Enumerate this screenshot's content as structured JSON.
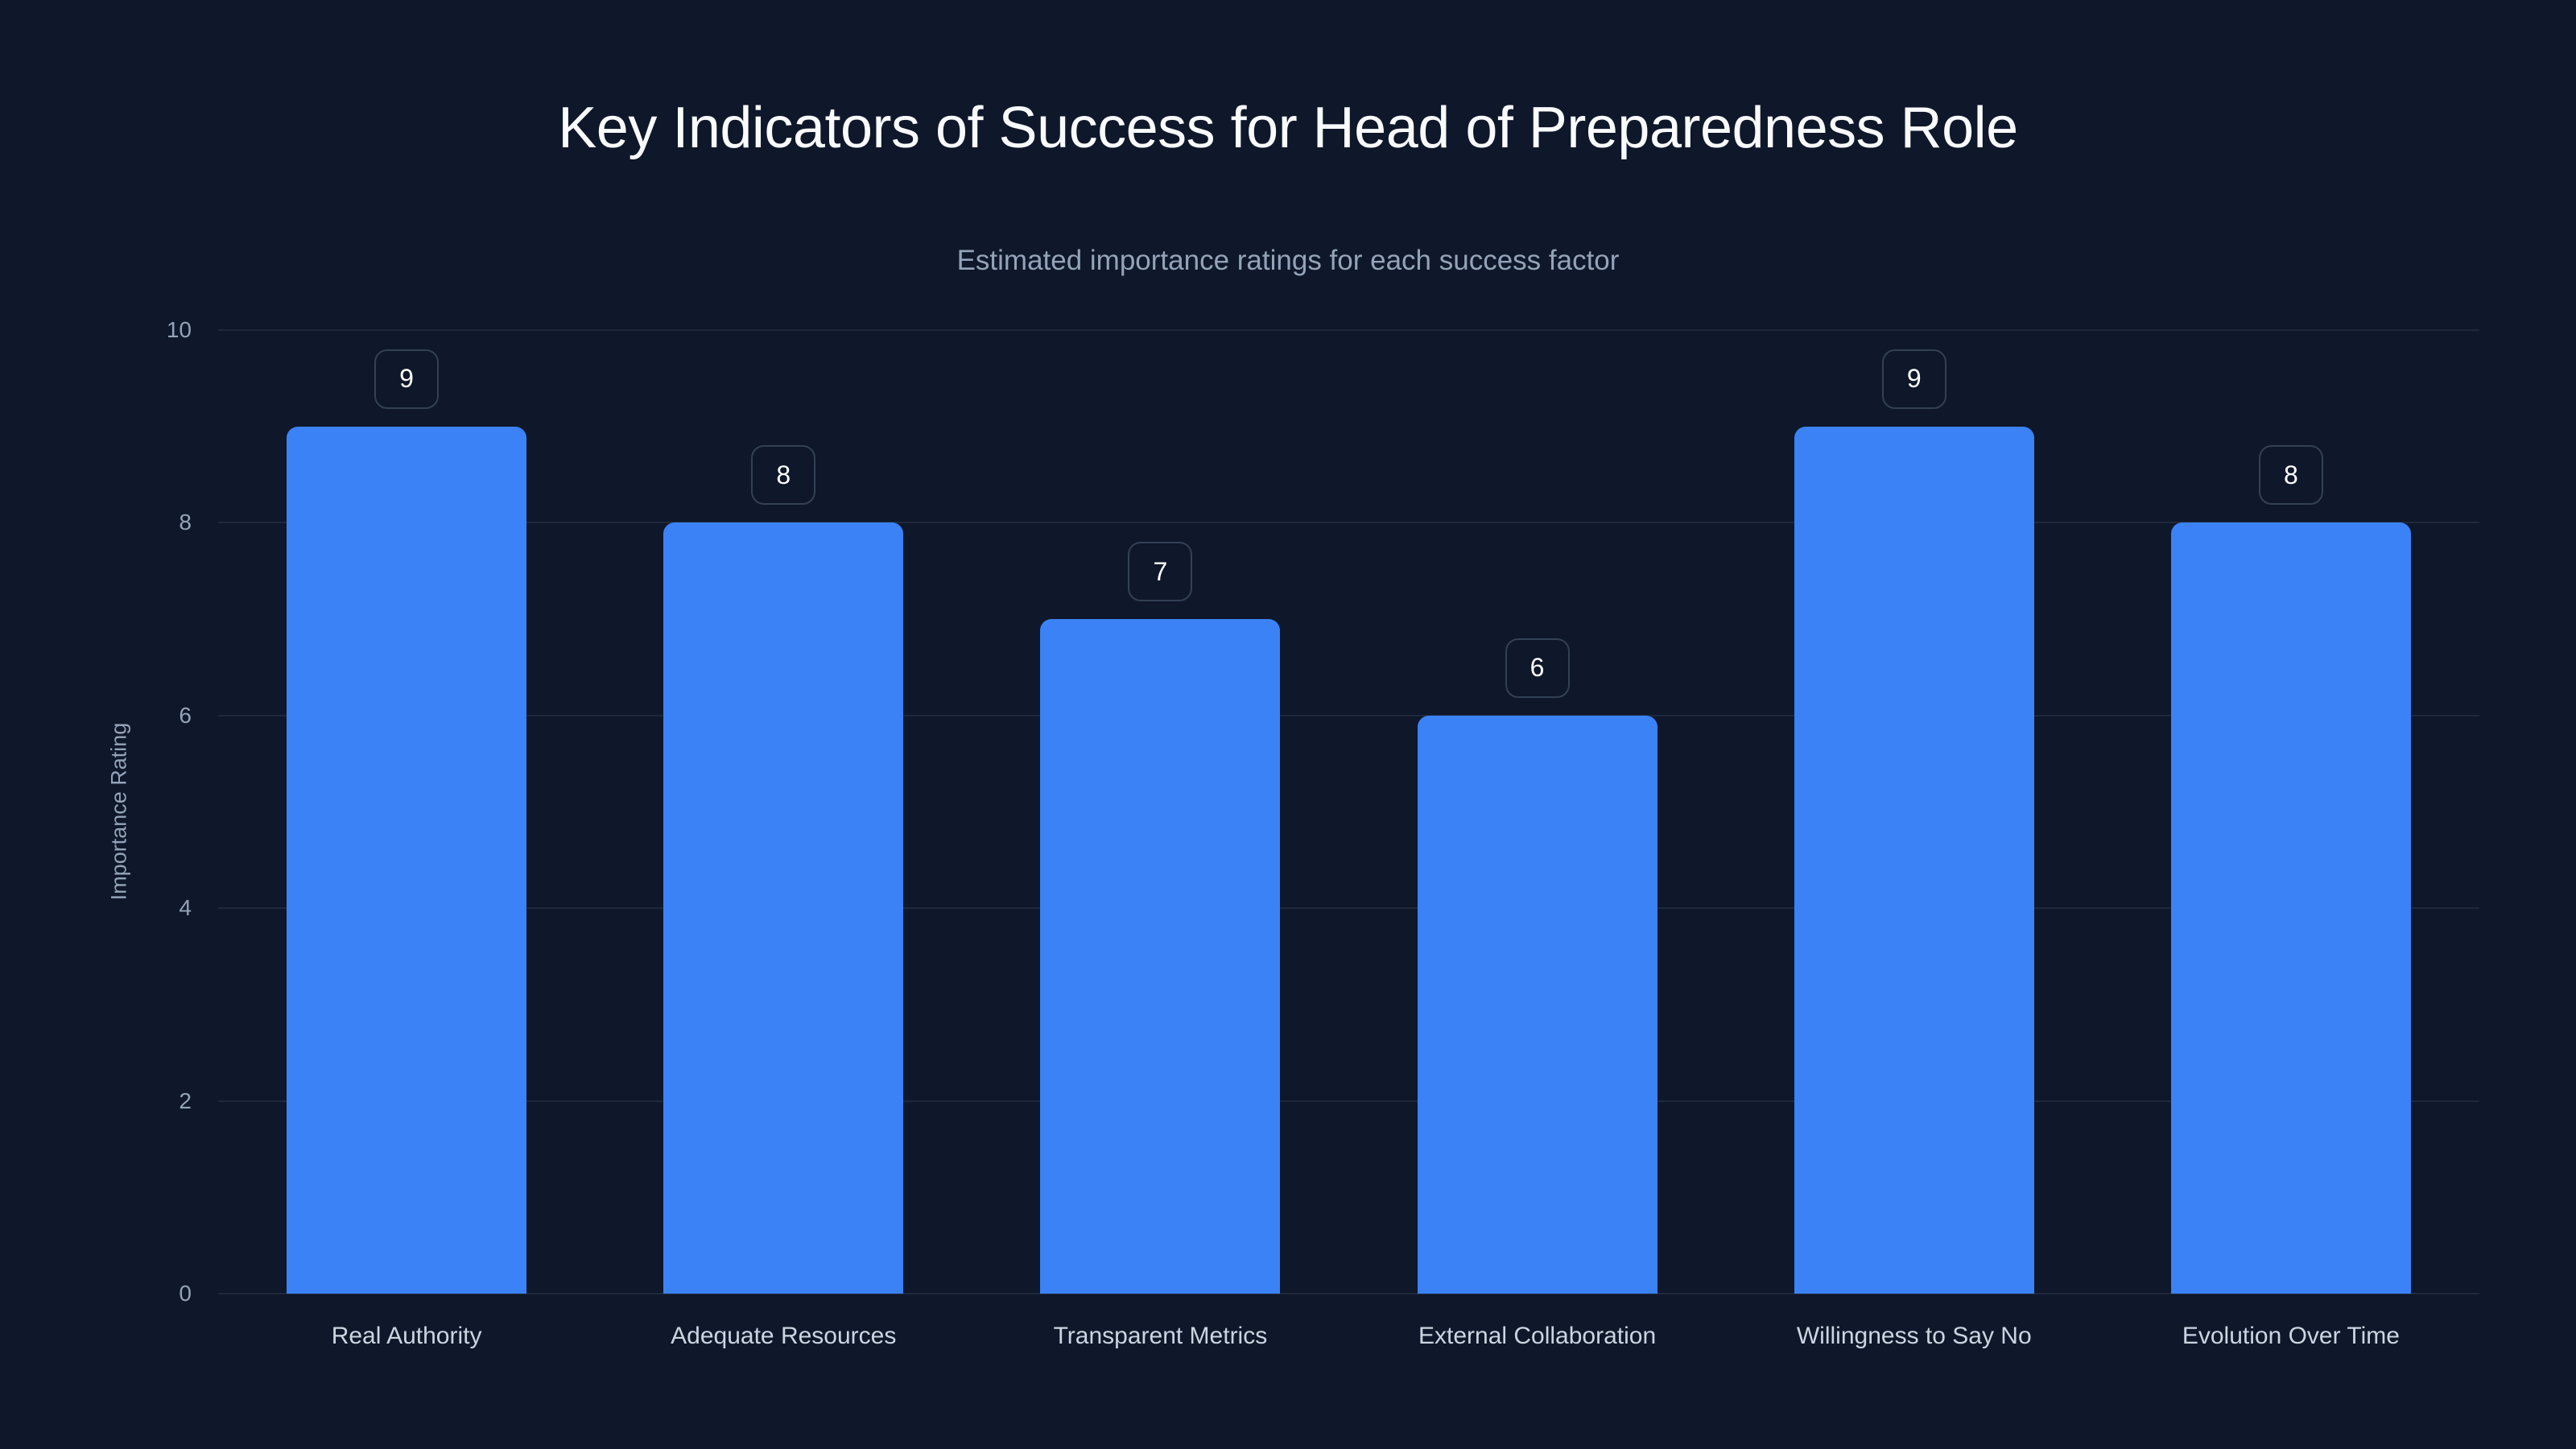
{
  "title": "Key Indicators of Success for Head of Preparedness Role",
  "subtitle": "Estimated importance ratings for each success factor",
  "colors": {
    "background": "#0f172a",
    "bar": "#3b82f6",
    "grid": "#1e293b",
    "tick_text": "#94a3b8",
    "label_text": "#cbd5e1",
    "value_box_border": "#334155"
  },
  "chart_data": {
    "type": "bar",
    "title": "Key Indicators of Success for Head of Preparedness Role",
    "subtitle": "Estimated importance ratings for each success factor",
    "xlabel": "",
    "ylabel": "Importance Rating",
    "categories": [
      "Real Authority",
      "Adequate Resources",
      "Transparent Metrics",
      "External Collaboration",
      "Willingness to Say No",
      "Evolution Over Time"
    ],
    "values": [
      9,
      8,
      7,
      6,
      9,
      8
    ],
    "ylim": [
      0,
      10
    ],
    "yticks": [
      0,
      2,
      4,
      6,
      8,
      10
    ],
    "grid": true,
    "legend": null,
    "data_labels": true
  },
  "y_ticks": [
    "0",
    "2",
    "4",
    "6",
    "8",
    "10"
  ],
  "value_labels": [
    "9",
    "8",
    "7",
    "6",
    "9",
    "8"
  ]
}
